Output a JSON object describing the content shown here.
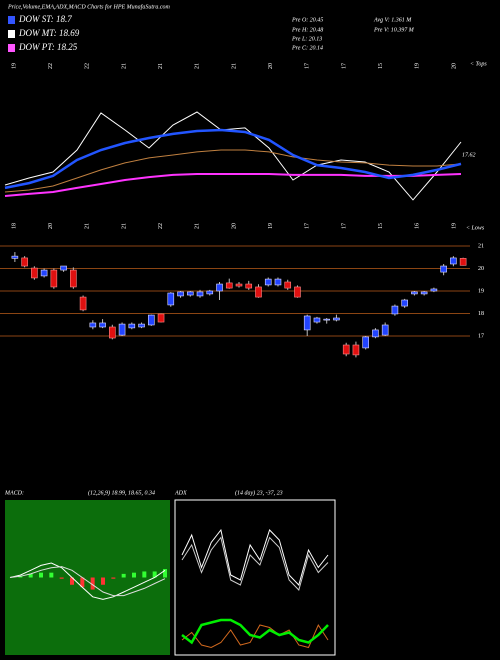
{
  "header": {
    "title": "Price,Volume,EMA,ADX,MACD Charts for HPE MunafaSutra.com",
    "legend": [
      {
        "label": "DOW ST: 18.7",
        "color": "#3355ff"
      },
      {
        "label": "DOW MT: 18.69",
        "color": "#ffffff"
      },
      {
        "label": "DOW PT: 18.25",
        "color": "#ff55ff"
      }
    ],
    "stats_left": [
      "Pre O: 20.45",
      "Pre H: 20.48",
      "Pre L: 20.13",
      "Pre C: 20.14"
    ],
    "stats_right": [
      "Avg V: 1.361 M",
      "Pre V: 10.397 M"
    ]
  },
  "chart_data": [
    {
      "type": "line",
      "ylim": [
        16,
        21
      ],
      "last_label": "17.62",
      "tops_label": "< Tops",
      "lows_label": "< Lows",
      "top_labels": [
        "19",
        "22",
        "22",
        "21",
        "21",
        "21",
        "21",
        "20",
        "17",
        "17",
        "15",
        "19",
        "20"
      ],
      "bottom_labels": [
        "18",
        "20",
        "21",
        "21",
        "22",
        "21",
        "20",
        "19",
        "17",
        "17",
        "15",
        "16",
        "19"
      ],
      "series": [
        {
          "color": "#ffffff",
          "values": [
            17.25,
            17.54,
            17.79,
            18.71,
            20.25,
            19.54,
            18.79,
            19.75,
            20.29,
            19.54,
            19.63,
            18.79,
            17.46,
            18.08,
            18.29,
            18.21,
            17.79,
            16.63,
            17.79,
            19.04
          ]
        },
        {
          "color": "#c08040",
          "values": [
            16.96,
            17.04,
            17.21,
            17.54,
            17.88,
            18.17,
            18.38,
            18.5,
            18.63,
            18.71,
            18.71,
            18.63,
            18.42,
            18.29,
            18.21,
            18.17,
            18.08,
            18.04,
            18.04,
            18.13
          ]
        },
        {
          "color": "#ff33ff",
          "values": [
            16.79,
            16.88,
            16.96,
            17.13,
            17.29,
            17.46,
            17.58,
            17.67,
            17.71,
            17.71,
            17.71,
            17.71,
            17.67,
            17.67,
            17.67,
            17.63,
            17.63,
            17.63,
            17.67,
            17.71
          ]
        },
        {
          "color": "#2255ff",
          "values": [
            17.13,
            17.33,
            17.63,
            18.29,
            18.71,
            19.0,
            19.21,
            19.38,
            19.5,
            19.54,
            19.46,
            19.13,
            18.5,
            18.08,
            17.96,
            17.79,
            17.54,
            17.67,
            17.88,
            18.13
          ]
        }
      ]
    },
    {
      "type": "candlestick",
      "ylim": [
        15.9,
        21.3
      ],
      "yticks": [
        17,
        18,
        19,
        20,
        21
      ],
      "up_color": "#2244ff",
      "down_color": "#e01010",
      "grid_color": "#8b4513",
      "open": [
        20.45,
        20.47,
        20.02,
        19.67,
        19.93,
        19.93,
        19.93,
        18.73,
        17.4,
        17.4,
        17.4,
        17.04,
        17.36,
        17.4,
        17.49,
        17.98,
        18.38,
        18.78,
        18.82,
        18.78,
        18.87,
        19.0,
        19.36,
        19.31,
        19.31,
        19.18,
        19.27,
        19.27,
        19.4,
        19.18,
        17.27,
        17.62,
        17.71,
        17.71,
        16.6,
        16.6,
        16.47,
        16.96,
        17.04,
        17.98,
        18.33,
        18.87,
        18.87,
        19.0,
        19.84,
        20.2,
        20.45
      ],
      "high": [
        20.73,
        20.55,
        20.1,
        20.0,
        20.0,
        20.1,
        20.05,
        18.8,
        17.7,
        17.75,
        17.5,
        17.6,
        17.6,
        17.6,
        17.95,
        18.0,
        18.95,
        19.0,
        19.0,
        19.05,
        19.05,
        19.4,
        19.55,
        19.4,
        19.45,
        19.3,
        19.6,
        19.6,
        19.5,
        19.25,
        17.95,
        17.85,
        17.8,
        17.95,
        16.7,
        16.75,
        17.0,
        17.35,
        17.6,
        18.4,
        18.65,
        19.0,
        19.0,
        19.15,
        20.2,
        20.55,
        20.48
      ],
      "low": [
        20.29,
        20.05,
        19.5,
        19.6,
        19.1,
        19.85,
        19.1,
        18.1,
        17.3,
        17.35,
        16.85,
        17.0,
        17.3,
        17.35,
        17.45,
        17.6,
        18.3,
        18.7,
        18.75,
        18.7,
        18.8,
        18.6,
        19.1,
        19.15,
        19.05,
        18.7,
        19.2,
        19.2,
        19.05,
        18.7,
        17.0,
        17.55,
        17.55,
        17.65,
        16.1,
        16.05,
        16.4,
        16.9,
        17.0,
        17.9,
        18.25,
        18.8,
        18.8,
        18.95,
        19.7,
        20.1,
        20.13
      ],
      "close": [
        20.55,
        20.11,
        19.58,
        19.93,
        19.18,
        20.11,
        19.18,
        18.16,
        17.58,
        17.58,
        16.91,
        17.53,
        17.53,
        17.53,
        17.93,
        17.62,
        18.91,
        18.96,
        18.96,
        18.96,
        19.0,
        19.31,
        19.13,
        19.22,
        19.13,
        18.73,
        19.53,
        19.53,
        19.13,
        18.73,
        17.89,
        17.8,
        17.75,
        17.8,
        16.2,
        16.16,
        16.96,
        17.27,
        17.49,
        18.33,
        18.6,
        18.96,
        18.96,
        19.09,
        20.11,
        20.47,
        20.14
      ]
    },
    {
      "type": "macd",
      "title": "MACD:",
      "subtitle": "(12,26,9) 18.99, 18.65, 0.34",
      "ylim": [
        -3,
        3
      ],
      "hist_pos": "#33ff33",
      "hist_neg": "#ff3333",
      "macd": [
        0,
        0.1,
        0.3,
        0.5,
        0.6,
        0.4,
        0,
        -0.4,
        -0.8,
        -0.9,
        -0.8,
        -0.6,
        -0.4,
        -0.2,
        0,
        0.3
      ],
      "signal": [
        0,
        0.05,
        0.15,
        0.3,
        0.4,
        0.45,
        0.3,
        0,
        -0.3,
        -0.6,
        -0.75,
        -0.75,
        -0.6,
        -0.45,
        -0.25,
        -0.05
      ],
      "histogram": [
        0,
        0.05,
        0.15,
        0.2,
        0.2,
        -0.05,
        -0.3,
        -0.4,
        -0.5,
        -0.3,
        -0.05,
        0.15,
        0.2,
        0.25,
        0.25,
        0.35
      ]
    },
    {
      "type": "adx",
      "title": "ADX",
      "subtitle": "(14 day) 23, -37, 23",
      "ylim": [
        0,
        60
      ],
      "series": [
        {
          "color": "#ffffff",
          "width": 1,
          "values": [
            40,
            48,
            35,
            45,
            50,
            32,
            30,
            44,
            38,
            50,
            46,
            32,
            28,
            42,
            35,
            40
          ]
        },
        {
          "color": "#cccccc",
          "width": 1,
          "values": [
            38,
            44,
            33,
            42,
            47,
            30,
            28,
            40,
            36,
            47,
            43,
            30,
            26,
            40,
            33,
            37
          ]
        },
        {
          "color": "#d2691e",
          "width": 1,
          "values": [
            6,
            9,
            4,
            3,
            5,
            10,
            4,
            5,
            12,
            11,
            8,
            10,
            4,
            3,
            12,
            6
          ]
        },
        {
          "color": "#00ee00",
          "width": 2.5,
          "values": [
            8,
            5,
            12,
            13,
            14,
            14,
            12,
            8,
            7,
            10,
            8,
            9,
            6,
            5,
            8,
            12
          ]
        }
      ]
    }
  ]
}
